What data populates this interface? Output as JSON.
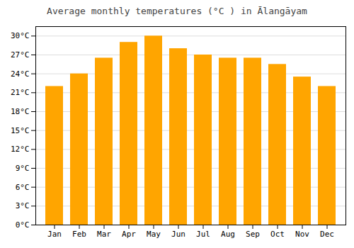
{
  "chart_data": {
    "type": "bar",
    "title": "Average monthly temperatures (°C ) in Ālangāyam",
    "categories": [
      "Jan",
      "Feb",
      "Mar",
      "Apr",
      "May",
      "Jun",
      "Jul",
      "Aug",
      "Sep",
      "Oct",
      "Nov",
      "Dec"
    ],
    "values": [
      22,
      24,
      26.5,
      29,
      30,
      28,
      27,
      26.5,
      26.5,
      25.5,
      23.5,
      22
    ],
    "color": "#FFA500",
    "ylim": [
      0,
      31.5
    ],
    "yticks": [
      {
        "value": 0,
        "label": "0°C"
      },
      {
        "value": 3,
        "label": "3°C"
      },
      {
        "value": 6,
        "label": "6°C"
      },
      {
        "value": 9,
        "label": "9°C"
      },
      {
        "value": 12,
        "label": "12°C"
      },
      {
        "value": 15,
        "label": "15°C"
      },
      {
        "value": 18,
        "label": "18°C"
      },
      {
        "value": 21,
        "label": "21°C"
      },
      {
        "value": 24,
        "label": "24°C"
      },
      {
        "value": 27,
        "label": "27°C"
      },
      {
        "value": 30,
        "label": "30°C"
      }
    ],
    "grid": true
  }
}
